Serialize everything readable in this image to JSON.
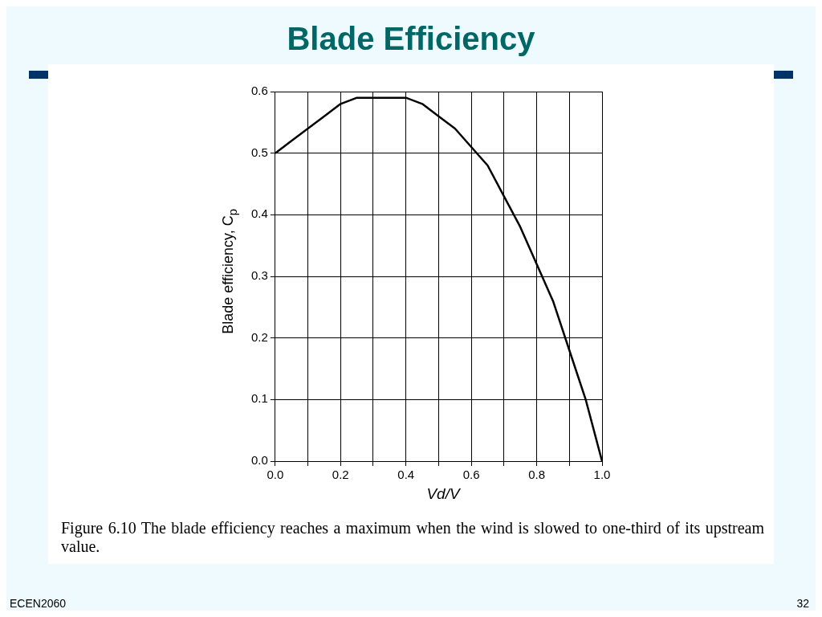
{
  "chart_data": {
    "type": "line",
    "title": "Blade Efficiency",
    "xlabel": "Vd/V",
    "ylabel": "Blade efficiency, C$_{p}$",
    "x": [
      0,
      0.05,
      0.1,
      0.15,
      0.2,
      0.25,
      0.3,
      0.35,
      0.4,
      0.45,
      0.5,
      0.55,
      0.6,
      0.65,
      0.7,
      0.75,
      0.8,
      0.85,
      0.9,
      0.95,
      1.0
    ],
    "series": [
      {
        "color": "#000000",
        "values": [
          0.5,
          0.52,
          0.54,
          0.56,
          0.58,
          0.59,
          0.59,
          0.59,
          0.59,
          0.58,
          0.56,
          0.54,
          0.51,
          0.48,
          0.43,
          0.38,
          0.32,
          0.26,
          0.18,
          0.1,
          0
        ]
      }
    ],
    "xlim": [
      0,
      1
    ],
    "ylim": [
      0,
      0.6
    ],
    "xticks": [
      {
        "value": 0,
        "label": "0.0"
      },
      {
        "value": 0.1,
        "label": null
      },
      {
        "value": 0.2,
        "label": "0.2"
      },
      {
        "value": 0.3,
        "label": null
      },
      {
        "value": 0.4,
        "label": "0.4"
      },
      {
        "value": 0.5,
        "label": null
      },
      {
        "value": 0.6,
        "label": "0.6"
      },
      {
        "value": 0.7,
        "label": null
      },
      {
        "value": 0.8,
        "label": "0.8"
      },
      {
        "value": 0.9,
        "label": null
      },
      {
        "value": 1,
        "label": "1.0"
      }
    ],
    "yticks": [
      {
        "value": 0,
        "label": "0.0"
      },
      {
        "value": 0.1,
        "label": "0.1"
      },
      {
        "value": 0.2,
        "label": "0.2"
      },
      {
        "value": 0.3,
        "label": "0.3"
      },
      {
        "value": 0.4,
        "label": "0.4"
      },
      {
        "value": 0.5,
        "label": "0.5"
      },
      {
        "value": 0.6,
        "label": "0.6"
      }
    ],
    "grid": true,
    "legend": false,
    "marker": "none",
    "line_style": "solid",
    "annotations": [
      "Figure 6.10   The blade efficiency reaches a maximum when the wind is slowed to one-third of its upstream value.",
      "ECEN2060",
      "32"
    ]
  }
}
